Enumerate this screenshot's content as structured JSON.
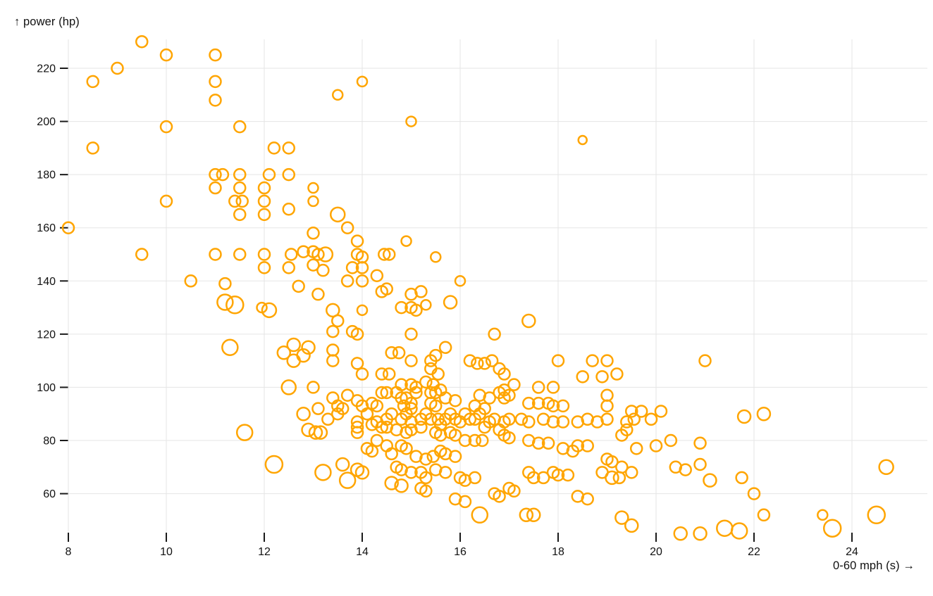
{
  "header": {
    "y_axis_title": "↑ power (hp)",
    "x_axis_title": "0-60 mph (s) →"
  },
  "style": {
    "accent": "#FFA500",
    "grid_color": "#e5e5e5",
    "tick_color": "#1a1a1a",
    "label_color": "#111111",
    "background": "#ffffff",
    "marker_stroke_width": 2.5
  },
  "chart_data": {
    "type": "scatter",
    "title": "",
    "xlabel": "0-60 mph (s)",
    "ylabel": "power (hp)",
    "x_ticks": [
      8,
      10,
      12,
      14,
      16,
      18,
      20,
      22,
      24
    ],
    "y_ticks": [
      60,
      80,
      100,
      120,
      140,
      160,
      180,
      200,
      220
    ],
    "xlim": [
      7.4,
      25.6
    ],
    "ylim": [
      44,
      233
    ],
    "grid": true,
    "legend": false,
    "marker": {
      "shape": "open-circle",
      "color": "#FFA500",
      "size_varies": true
    },
    "points": [
      [
        9.5,
        230,
        8
      ],
      [
        10,
        225,
        8
      ],
      [
        11,
        225,
        8
      ],
      [
        9,
        220,
        8
      ],
      [
        8.5,
        215,
        8
      ],
      [
        11,
        215,
        8
      ],
      [
        11,
        208,
        8
      ],
      [
        14,
        215,
        7
      ],
      [
        13.5,
        210,
        7
      ],
      [
        15,
        200,
        7
      ],
      [
        10,
        198,
        8
      ],
      [
        11.5,
        198,
        8
      ],
      [
        8.5,
        190,
        8
      ],
      [
        12.2,
        190,
        8
      ],
      [
        12.5,
        190,
        8
      ],
      [
        18.5,
        193,
        6
      ],
      [
        11,
        180,
        8
      ],
      [
        11.15,
        180,
        8
      ],
      [
        11.5,
        180,
        8
      ],
      [
        12.1,
        180,
        8
      ],
      [
        12.5,
        180,
        8
      ],
      [
        11,
        175,
        8
      ],
      [
        11.5,
        175,
        8
      ],
      [
        12,
        175,
        8
      ],
      [
        13,
        175,
        7
      ],
      [
        10,
        170,
        8
      ],
      [
        11.4,
        170,
        8
      ],
      [
        11.55,
        170,
        8
      ],
      [
        12,
        170,
        8
      ],
      [
        13,
        170,
        7
      ],
      [
        11.5,
        165,
        8
      ],
      [
        12,
        165,
        8
      ],
      [
        12.5,
        167,
        8
      ],
      [
        13.5,
        165,
        10
      ],
      [
        8,
        160,
        8
      ],
      [
        13.7,
        160,
        8
      ],
      [
        13,
        158,
        8
      ],
      [
        13.9,
        155,
        8
      ],
      [
        14.9,
        155,
        7
      ],
      [
        9.5,
        150,
        8
      ],
      [
        11,
        150,
        8
      ],
      [
        11.5,
        150,
        8
      ],
      [
        12,
        150,
        8
      ],
      [
        12.55,
        150,
        8
      ],
      [
        12.8,
        151,
        8
      ],
      [
        13,
        151,
        8
      ],
      [
        13.1,
        150,
        8
      ],
      [
        13.25,
        150,
        10
      ],
      [
        13.9,
        150,
        8
      ],
      [
        14,
        149,
        8
      ],
      [
        14.45,
        150,
        8
      ],
      [
        14.55,
        150,
        8
      ],
      [
        15.5,
        149,
        7
      ],
      [
        12,
        145,
        8
      ],
      [
        12.5,
        145,
        8
      ],
      [
        13,
        146,
        8
      ],
      [
        13.2,
        144,
        8
      ],
      [
        13.8,
        145,
        8
      ],
      [
        14,
        145,
        8
      ],
      [
        14.3,
        142,
        8
      ],
      [
        10.5,
        140,
        8
      ],
      [
        11.2,
        139,
        8
      ],
      [
        13.7,
        140,
        8
      ],
      [
        14,
        140,
        8
      ],
      [
        16,
        140,
        7
      ],
      [
        14.5,
        137,
        8
      ],
      [
        12.7,
        138,
        8
      ],
      [
        13.1,
        135,
        8
      ],
      [
        14.4,
        136,
        8
      ],
      [
        15,
        135,
        8
      ],
      [
        15.2,
        136,
        8
      ],
      [
        11.2,
        132,
        11
      ],
      [
        11.4,
        131,
        12
      ],
      [
        11.95,
        130,
        7
      ],
      [
        12.1,
        129,
        10
      ],
      [
        13.4,
        129,
        9
      ],
      [
        14,
        129,
        7
      ],
      [
        14.8,
        130,
        8
      ],
      [
        15,
        130,
        8
      ],
      [
        15.1,
        129,
        8
      ],
      [
        15.3,
        131,
        7
      ],
      [
        15.8,
        132,
        9
      ],
      [
        13.5,
        125,
        8
      ],
      [
        17.4,
        125,
        9
      ],
      [
        13.4,
        121,
        8
      ],
      [
        13.8,
        121,
        8
      ],
      [
        13.9,
        120,
        8
      ],
      [
        15,
        120,
        8
      ],
      [
        16.7,
        120,
        8
      ],
      [
        11.3,
        115,
        11
      ],
      [
        12.6,
        116,
        9
      ],
      [
        12.9,
        115,
        9
      ],
      [
        12.4,
        113,
        9
      ],
      [
        12.8,
        112,
        9
      ],
      [
        12.6,
        110,
        9
      ],
      [
        13.4,
        114,
        8
      ],
      [
        13.4,
        110,
        8
      ],
      [
        14.6,
        113,
        8
      ],
      [
        14.75,
        113,
        8
      ],
      [
        15,
        110,
        8
      ],
      [
        15.4,
        110,
        8
      ],
      [
        15.5,
        112,
        8
      ],
      [
        15.7,
        115,
        8
      ],
      [
        16.2,
        110,
        8
      ],
      [
        16.35,
        109,
        8
      ],
      [
        16.5,
        109,
        8
      ],
      [
        16.65,
        110,
        8
      ],
      [
        18,
        110,
        8
      ],
      [
        18.7,
        110,
        8
      ],
      [
        19,
        110,
        8
      ],
      [
        21,
        110,
        8
      ],
      [
        13.9,
        109,
        8
      ],
      [
        14,
        105,
        8
      ],
      [
        15.4,
        107,
        8
      ],
      [
        15.55,
        105,
        8
      ],
      [
        14.4,
        105,
        8
      ],
      [
        14.55,
        105,
        8
      ],
      [
        16.8,
        107,
        8
      ],
      [
        16.9,
        105,
        8
      ],
      [
        18.5,
        104,
        8
      ],
      [
        18.9,
        104,
        8
      ],
      [
        19.2,
        105,
        8
      ],
      [
        12.5,
        100,
        10
      ],
      [
        13,
        100,
        8
      ],
      [
        14.8,
        101,
        8
      ],
      [
        15,
        101,
        8
      ],
      [
        15.1,
        100,
        8
      ],
      [
        15.3,
        102,
        8
      ],
      [
        15.45,
        101,
        8
      ],
      [
        16.8,
        98,
        8
      ],
      [
        16.9,
        99,
        8
      ],
      [
        17.1,
        101,
        8
      ],
      [
        17.6,
        100,
        8
      ],
      [
        17.9,
        100,
        8
      ],
      [
        14.4,
        98,
        8
      ],
      [
        14.5,
        98,
        8
      ],
      [
        14.7,
        98,
        8
      ],
      [
        15.1,
        98,
        8
      ],
      [
        15.4,
        98,
        8
      ],
      [
        15.5,
        98,
        8
      ],
      [
        15.6,
        99,
        8
      ],
      [
        13.4,
        96,
        8
      ],
      [
        13.5,
        93,
        8
      ],
      [
        13.7,
        97,
        8
      ],
      [
        13.9,
        95,
        8
      ],
      [
        14,
        93,
        8
      ],
      [
        14.2,
        94,
        8
      ],
      [
        14.3,
        93,
        8
      ],
      [
        14.8,
        96,
        8
      ],
      [
        14.9,
        96,
        8
      ],
      [
        14.85,
        93,
        8
      ],
      [
        15,
        94,
        8
      ],
      [
        15.4,
        94,
        8
      ],
      [
        15.5,
        93,
        8
      ],
      [
        15.7,
        96,
        8
      ],
      [
        15.9,
        95,
        8
      ],
      [
        16.3,
        93,
        8
      ],
      [
        16.5,
        92,
        8
      ],
      [
        16.4,
        97,
        8
      ],
      [
        16.6,
        96,
        8
      ],
      [
        16.9,
        96,
        8
      ],
      [
        17,
        97,
        8
      ],
      [
        17.4,
        94,
        8
      ],
      [
        17.6,
        94,
        8
      ],
      [
        17.8,
        94,
        8
      ],
      [
        17.9,
        93,
        8
      ],
      [
        18.1,
        93,
        8
      ],
      [
        19,
        97,
        8
      ],
      [
        19,
        93,
        8
      ],
      [
        19.5,
        91,
        8
      ],
      [
        19.7,
        91,
        8
      ],
      [
        20.1,
        91,
        8
      ],
      [
        21.8,
        89,
        9
      ],
      [
        22.2,
        90,
        9
      ],
      [
        12.8,
        90,
        9
      ],
      [
        13.1,
        92,
        8
      ],
      [
        13.3,
        88,
        8
      ],
      [
        13.5,
        90,
        8
      ],
      [
        13.6,
        92,
        8
      ],
      [
        13.9,
        87,
        8
      ],
      [
        14.1,
        90,
        8
      ],
      [
        14.2,
        86,
        8
      ],
      [
        14.3,
        87,
        8
      ],
      [
        14.5,
        88,
        8
      ],
      [
        14.6,
        90,
        8
      ],
      [
        14.8,
        88,
        8
      ],
      [
        14.9,
        90,
        8
      ],
      [
        15,
        92,
        8
      ],
      [
        15,
        87,
        8
      ],
      [
        15.2,
        88,
        8
      ],
      [
        15.3,
        90,
        8
      ],
      [
        15.4,
        88,
        8
      ],
      [
        15.55,
        88,
        8
      ],
      [
        15.7,
        88,
        8
      ],
      [
        15.8,
        90,
        8
      ],
      [
        15.9,
        88,
        8
      ],
      [
        16,
        87,
        8
      ],
      [
        16.1,
        90,
        8
      ],
      [
        16.2,
        88,
        8
      ],
      [
        16.3,
        88,
        8
      ],
      [
        16.4,
        90,
        8
      ],
      [
        16.6,
        87,
        8
      ],
      [
        16.7,
        88,
        8
      ],
      [
        16.9,
        87,
        8
      ],
      [
        17,
        88,
        8
      ],
      [
        17.25,
        88,
        8
      ],
      [
        17.4,
        87,
        8
      ],
      [
        17.7,
        88,
        8
      ],
      [
        17.9,
        87,
        8
      ],
      [
        18.1,
        87,
        8
      ],
      [
        18.4,
        87,
        8
      ],
      [
        18.6,
        88,
        8
      ],
      [
        18.8,
        87,
        8
      ],
      [
        19,
        88,
        8
      ],
      [
        19.4,
        87,
        8
      ],
      [
        19.55,
        88,
        8
      ],
      [
        19.9,
        88,
        8
      ],
      [
        13.9,
        85,
        8
      ],
      [
        13.9,
        83,
        8
      ],
      [
        14.4,
        85,
        8
      ],
      [
        14.5,
        85,
        8
      ],
      [
        14.7,
        84,
        8
      ],
      [
        14.9,
        83,
        8
      ],
      [
        15,
        84,
        8
      ],
      [
        15.2,
        85,
        8
      ],
      [
        15.6,
        86,
        8
      ],
      [
        16.5,
        85,
        8
      ],
      [
        16.8,
        84,
        8
      ],
      [
        12.9,
        84,
        9
      ],
      [
        13.05,
        83,
        9
      ],
      [
        13.15,
        83,
        9
      ],
      [
        11.6,
        83,
        11
      ],
      [
        15.5,
        83,
        8
      ],
      [
        15.6,
        82,
        8
      ],
      [
        15.8,
        83,
        8
      ],
      [
        15.9,
        82,
        8
      ],
      [
        16.1,
        80,
        8
      ],
      [
        16.3,
        80,
        8
      ],
      [
        16.45,
        80,
        8
      ],
      [
        16.9,
        82,
        8
      ],
      [
        17,
        81,
        8
      ],
      [
        17.4,
        80,
        8
      ],
      [
        17.6,
        79,
        8
      ],
      [
        17.8,
        79,
        8
      ],
      [
        19.3,
        82,
        8
      ],
      [
        19.4,
        84,
        8
      ],
      [
        20,
        78,
        8
      ],
      [
        20.3,
        80,
        8
      ],
      [
        20.9,
        79,
        8
      ],
      [
        14.1,
        77,
        8
      ],
      [
        14.2,
        76,
        8
      ],
      [
        14.3,
        80,
        8
      ],
      [
        14.5,
        78,
        8
      ],
      [
        14.6,
        75,
        8
      ],
      [
        14.8,
        78,
        8
      ],
      [
        14.9,
        77,
        8
      ],
      [
        15.1,
        74,
        8
      ],
      [
        15.3,
        73,
        8
      ],
      [
        15.45,
        74,
        8
      ],
      [
        15.6,
        76,
        8
      ],
      [
        15.7,
        75,
        8
      ],
      [
        15.9,
        74,
        8
      ],
      [
        18.1,
        77,
        8
      ],
      [
        18.3,
        76,
        8
      ],
      [
        18.4,
        78,
        8
      ],
      [
        18.6,
        78,
        8
      ],
      [
        19.6,
        77,
        8
      ],
      [
        12.2,
        71,
        12
      ],
      [
        13.2,
        68,
        11
      ],
      [
        13.6,
        71,
        9
      ],
      [
        13.7,
        65,
        11
      ],
      [
        13.9,
        69,
        9
      ],
      [
        14,
        68,
        9
      ],
      [
        14.7,
        70,
        8
      ],
      [
        14.8,
        69,
        8
      ],
      [
        15,
        68,
        8
      ],
      [
        14.6,
        64,
        9
      ],
      [
        14.8,
        63,
        9
      ],
      [
        15.2,
        68,
        8
      ],
      [
        15.3,
        66,
        8
      ],
      [
        15.5,
        69,
        8
      ],
      [
        15.7,
        68,
        8
      ],
      [
        16,
        66,
        8
      ],
      [
        16.1,
        65,
        8
      ],
      [
        16.3,
        66,
        8
      ],
      [
        17.4,
        68,
        8
      ],
      [
        17.5,
        66,
        8
      ],
      [
        17.7,
        66,
        8
      ],
      [
        17.9,
        68,
        8
      ],
      [
        18,
        67,
        8
      ],
      [
        18.2,
        67,
        8
      ],
      [
        18.9,
        68,
        8
      ],
      [
        19.1,
        66,
        9
      ],
      [
        19.25,
        66,
        8
      ],
      [
        19,
        73,
        8
      ],
      [
        19.1,
        72,
        8
      ],
      [
        19.3,
        70,
        8
      ],
      [
        19.5,
        68,
        8
      ],
      [
        20.4,
        70,
        8
      ],
      [
        20.6,
        69,
        8
      ],
      [
        20.9,
        71,
        8
      ],
      [
        21.1,
        65,
        9
      ],
      [
        21.75,
        66,
        8
      ],
      [
        15.2,
        62,
        8
      ],
      [
        15.3,
        61,
        8
      ],
      [
        16.7,
        60,
        8
      ],
      [
        16.8,
        59,
        8
      ],
      [
        17,
        62,
        8
      ],
      [
        17.1,
        61,
        8
      ],
      [
        18.4,
        59,
        8
      ],
      [
        18.6,
        58,
        8
      ],
      [
        15.9,
        58,
        8
      ],
      [
        16.1,
        57,
        8
      ],
      [
        22,
        60,
        8
      ],
      [
        17.35,
        52,
        9
      ],
      [
        17.5,
        52,
        9
      ],
      [
        16.4,
        52,
        11
      ],
      [
        19.3,
        51,
        9
      ],
      [
        19.5,
        48,
        9
      ],
      [
        20.5,
        45,
        9
      ],
      [
        20.9,
        45,
        9
      ],
      [
        21.4,
        47,
        11
      ],
      [
        21.7,
        46,
        11
      ],
      [
        22.2,
        52,
        8
      ],
      [
        23.4,
        52,
        7
      ],
      [
        23.6,
        47,
        12
      ],
      [
        24.5,
        52,
        12
      ],
      [
        24.7,
        70,
        10
      ]
    ]
  }
}
